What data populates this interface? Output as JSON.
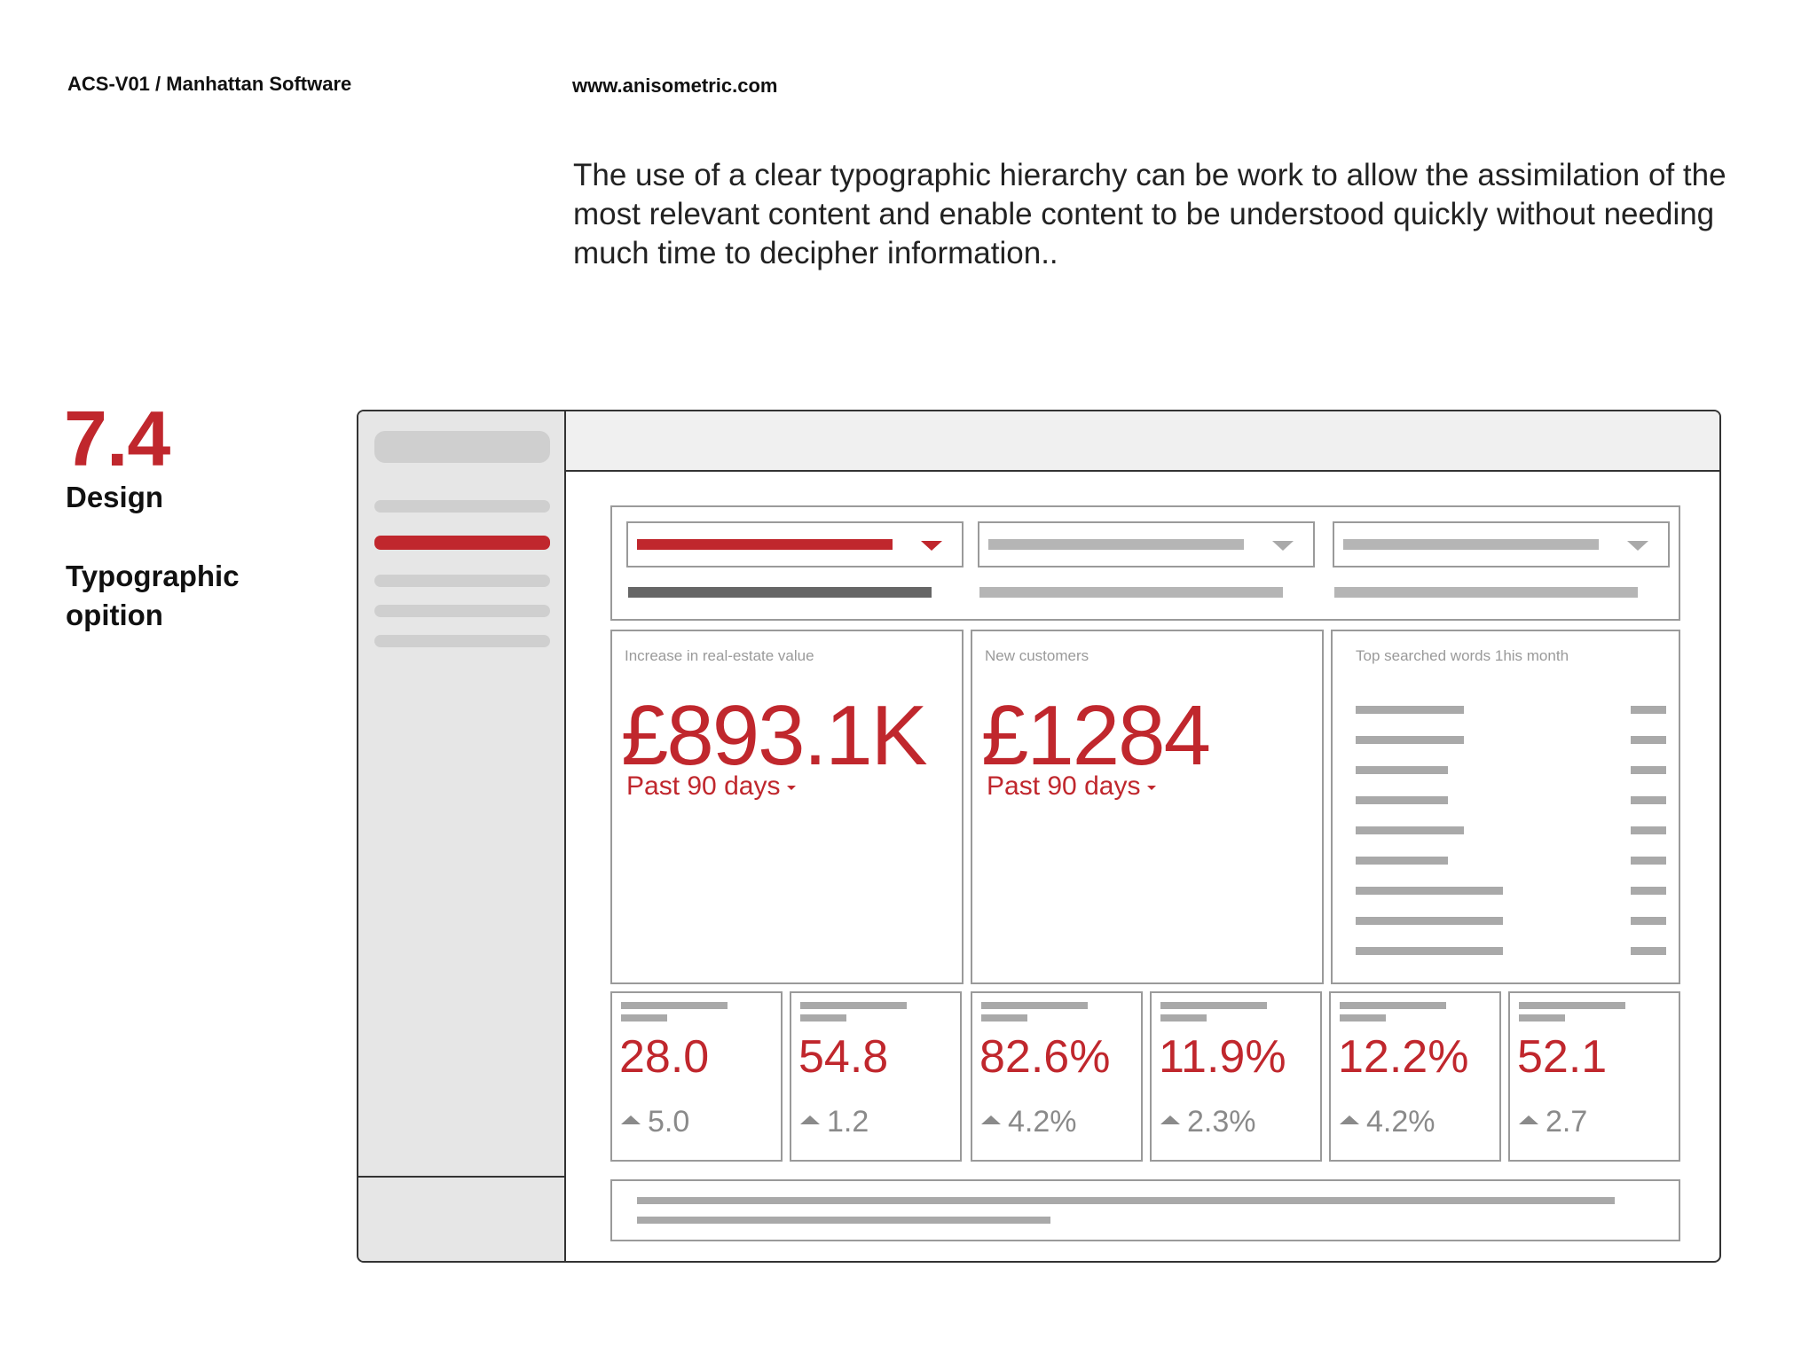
{
  "header": {
    "doc_id": "ACS-V01 / Manhattan Software",
    "url": "www.anisometric.com",
    "intro": "The use of a clear typographic hierarchy can be work to allow the assimilation of the most relevant content and enable content to be understood quickly without needing much time to decipher information.."
  },
  "section": {
    "number": "7.4",
    "label": "Design",
    "subtitle": "Typographic opition"
  },
  "wireframe": {
    "accent": "#c0272d",
    "cards": [
      {
        "title": "Increase in real-estate value",
        "value": "£893.1K",
        "period": "Past 90 days"
      },
      {
        "title": "New customers",
        "value": "£1284",
        "period": "Past 90 days"
      }
    ],
    "word_card": {
      "title": "Top searched words 1his month"
    },
    "kpis": [
      {
        "value": "28.0",
        "delta": "5.0"
      },
      {
        "value": "54.8",
        "delta": "1.2"
      },
      {
        "value": "82.6%",
        "delta": "4.2%"
      },
      {
        "value": "11.9%",
        "delta": "2.3%"
      },
      {
        "value": "12.2%",
        "delta": "4.2%"
      },
      {
        "value": "52.1",
        "delta": "2.7"
      }
    ]
  }
}
